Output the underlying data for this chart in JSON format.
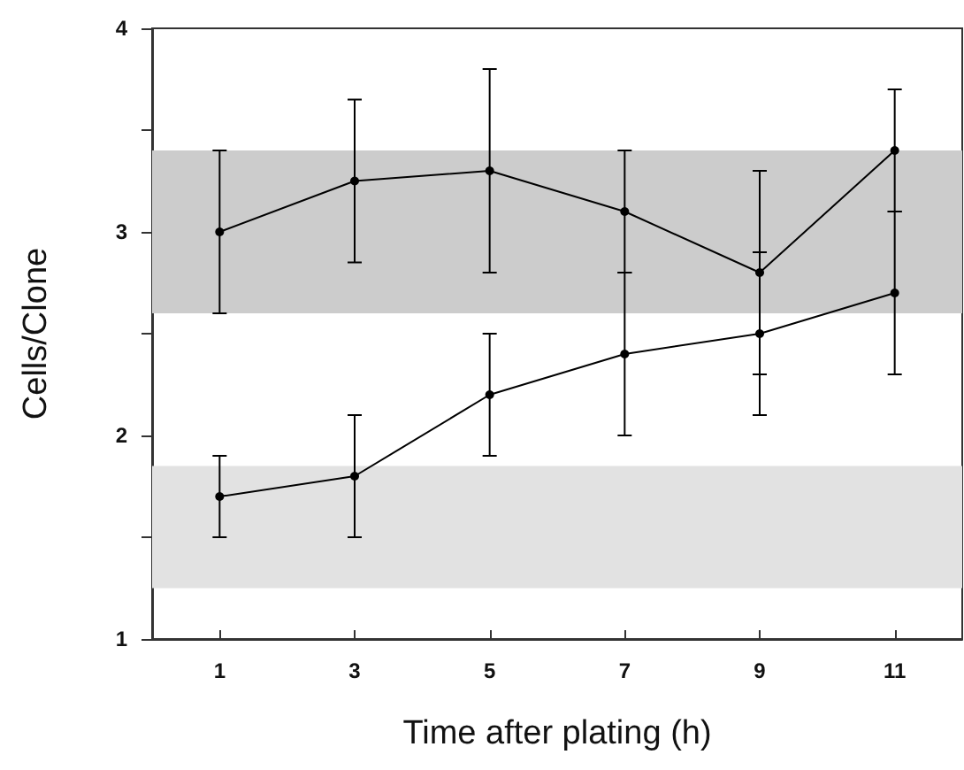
{
  "chart_data": {
    "type": "line",
    "xlabel": "Time after plating (h)",
    "ylabel": "Cells/Clone",
    "x": [
      1,
      3,
      5,
      7,
      9,
      11
    ],
    "series": [
      {
        "color": "#000000",
        "values": [
          3.0,
          3.25,
          3.3,
          3.1,
          2.8,
          3.4
        ],
        "errors": [
          [
            2.6,
            3.4
          ],
          [
            2.85,
            3.65
          ],
          [
            2.8,
            3.8
          ],
          [
            2.8,
            3.4
          ],
          [
            2.3,
            3.3
          ],
          [
            3.1,
            3.7
          ]
        ]
      },
      {
        "color": "#000000",
        "values": [
          1.7,
          1.8,
          2.2,
          2.4,
          2.5,
          2.7
        ],
        "errors": [
          [
            1.5,
            1.9
          ],
          [
            1.5,
            2.1
          ],
          [
            1.9,
            2.5
          ],
          [
            2.0,
            2.8
          ],
          [
            2.1,
            2.9
          ],
          [
            2.3,
            3.1
          ]
        ]
      }
    ],
    "xlim": [
      0,
      12
    ],
    "xticks": [
      1,
      3,
      5,
      7,
      9,
      11
    ],
    "ylim": [
      1,
      4
    ],
    "yticks": [
      1,
      {
        "value": 1.5,
        "label": null
      },
      2,
      {
        "value": 2.5,
        "label": null
      },
      3,
      {
        "value": 3.5,
        "label": null
      },
      4
    ],
    "bands": [
      {
        "axis": "y",
        "from": 2.6,
        "to": 3.4,
        "color": "#cccccc"
      },
      {
        "axis": "y",
        "from": 1.25,
        "to": 1.85,
        "color": "#e2e2e2"
      }
    ],
    "marker": "circle",
    "line_style": "solid",
    "grid": false
  }
}
